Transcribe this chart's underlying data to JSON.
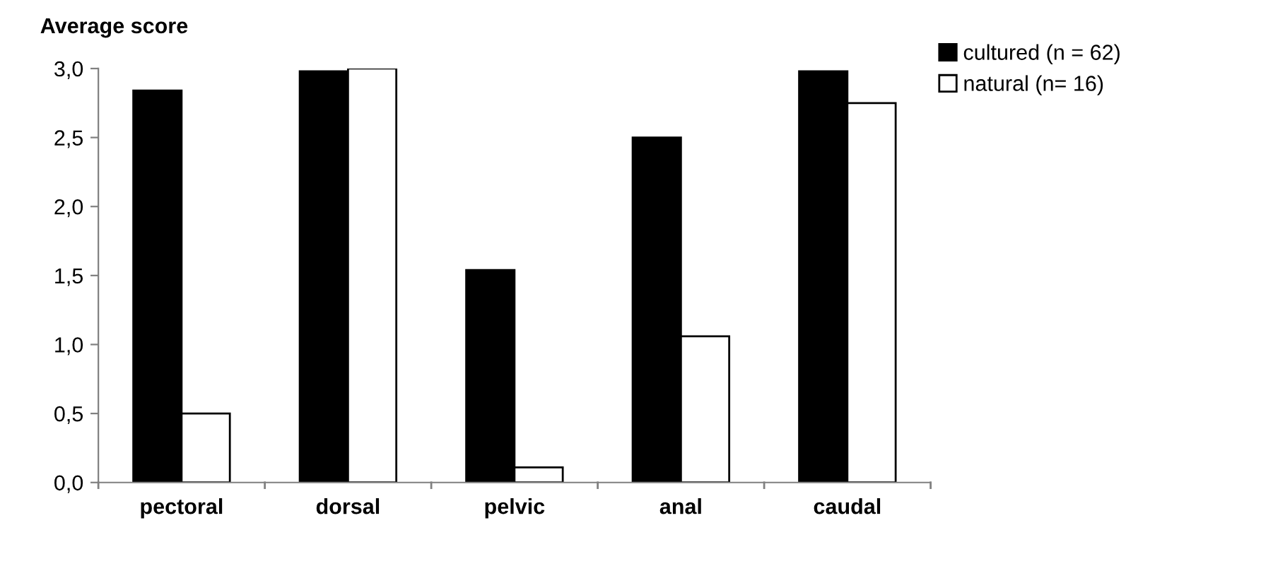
{
  "chart_data": {
    "type": "bar",
    "title": "Average score",
    "categories": [
      "pectoral",
      "dorsal",
      "pelvic",
      "anal",
      "caudal"
    ],
    "series": [
      {
        "name": "cultured (n = 62)",
        "color": "#000000",
        "values": [
          2.84,
          2.98,
          1.54,
          2.5,
          2.98
        ]
      },
      {
        "name": "natural (n= 16)",
        "color": "#ffffff",
        "values": [
          0.5,
          3.0,
          0.11,
          1.06,
          2.75
        ]
      }
    ],
    "ylim": [
      0,
      3
    ],
    "yticks": [
      {
        "value": 0,
        "label": "0,0"
      },
      {
        "value": 0.5,
        "label": "0,5"
      },
      {
        "value": 1,
        "label": "1,0"
      },
      {
        "value": 1.5,
        "label": "1,5"
      },
      {
        "value": 2,
        "label": "2,0"
      },
      {
        "value": 2.5,
        "label": "2,5"
      },
      {
        "value": 3,
        "label": "3,0"
      }
    ],
    "grid": false,
    "legend": "top right"
  }
}
